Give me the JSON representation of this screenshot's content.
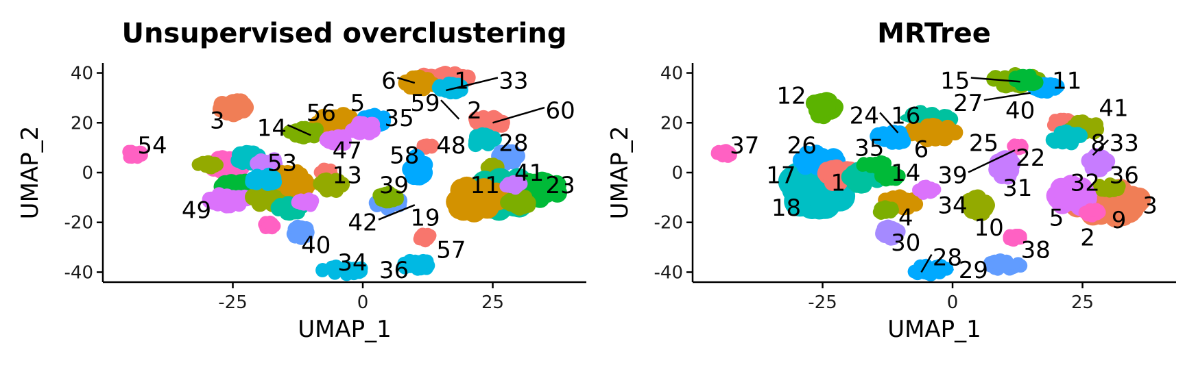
{
  "chart_data": [
    {
      "type": "scatter",
      "title": "Unsupervised overclustering",
      "xlabel": "UMAP_1",
      "ylabel": "UMAP_2",
      "xlim": [
        -50,
        43
      ],
      "ylim": [
        -44,
        44
      ],
      "xticks": [
        -25,
        0,
        25
      ],
      "yticks": [
        -40,
        -20,
        0,
        20,
        40
      ],
      "grid": false,
      "legend": "none",
      "clusters": [
        {
          "x": 15.5,
          "y": 37,
          "rx": 6.5,
          "ry": 3.5,
          "color": "#F8766D"
        },
        {
          "x": 11,
          "y": 36,
          "rx": 4,
          "ry": 3,
          "color": "#D39200"
        },
        {
          "x": 17,
          "y": 34,
          "rx": 3,
          "ry": 2.5,
          "color": "#00B9E3"
        },
        {
          "x": -25,
          "y": 26,
          "rx": 3,
          "ry": 4,
          "color": "#F07E56"
        },
        {
          "x": -5,
          "y": 20,
          "rx": 5,
          "ry": 4,
          "color": "#D39200"
        },
        {
          "x": 2,
          "y": 21,
          "rx": 3,
          "ry": 3,
          "color": "#00A9FF"
        },
        {
          "x": -11,
          "y": 16,
          "rx": 4,
          "ry": 2.5,
          "color": "#7CAE00"
        },
        {
          "x": -5,
          "y": 13,
          "rx": 3,
          "ry": 2.5,
          "color": "#DB72FB"
        },
        {
          "x": 0,
          "y": 18,
          "rx": 3,
          "ry": 3,
          "color": "#DB72FB"
        },
        {
          "x": -44,
          "y": 7.5,
          "rx": 2,
          "ry": 2,
          "color": "#FF61C3"
        },
        {
          "x": 12.5,
          "y": 10.5,
          "rx": 1.5,
          "ry": 1.5,
          "color": "#F8766D"
        },
        {
          "x": 24,
          "y": 20,
          "rx": 4,
          "ry": 3,
          "color": "#F8766D"
        },
        {
          "x": 23,
          "y": 13,
          "rx": 3,
          "ry": 3,
          "color": "#00BFC4"
        },
        {
          "x": 28,
          "y": 6,
          "rx": 2.5,
          "ry": 3.5,
          "color": "#619CFF"
        },
        {
          "x": 25,
          "y": 2,
          "rx": 1.5,
          "ry": 2,
          "color": "#93AA00"
        },
        {
          "x": 10.5,
          "y": 2,
          "rx": 2,
          "ry": 5,
          "color": "#00A9FF"
        },
        {
          "x": 27,
          "y": -9,
          "rx": 8,
          "ry": 8,
          "color": "#00C19F"
        },
        {
          "x": 34,
          "y": -7,
          "rx": 5,
          "ry": 5,
          "color": "#00BA38"
        },
        {
          "x": 22,
          "y": -11,
          "rx": 5,
          "ry": 7,
          "color": "#D39200"
        },
        {
          "x": 30,
          "y": -12,
          "rx": 3,
          "ry": 3,
          "color": "#7CAE00"
        },
        {
          "x": 29,
          "y": -5,
          "rx": 2,
          "ry": 2,
          "color": "#C77CFF"
        },
        {
          "x": 5,
          "y": -12,
          "rx": 3.5,
          "ry": 3,
          "color": "#619CFF"
        },
        {
          "x": 5,
          "y": -10,
          "rx": 2.5,
          "ry": 2.5,
          "color": "#7CAE00"
        },
        {
          "x": 12,
          "y": -26,
          "rx": 1.5,
          "ry": 2,
          "color": "#F8766D"
        },
        {
          "x": 10,
          "y": -37,
          "rx": 4,
          "ry": 2.5,
          "color": "#00B9E3"
        },
        {
          "x": -4,
          "y": -39,
          "rx": 5,
          "ry": 2.5,
          "color": "#00B9E3"
        },
        {
          "x": -12,
          "y": -24,
          "rx": 2,
          "ry": 3,
          "color": "#619CFF"
        },
        {
          "x": -18,
          "y": -21,
          "rx": 1.5,
          "ry": 2,
          "color": "#FF61C3"
        },
        {
          "x": -26,
          "y": 3,
          "rx": 4,
          "ry": 4,
          "color": "#FF61C3"
        },
        {
          "x": -22,
          "y": 6,
          "rx": 3,
          "ry": 3,
          "color": "#00BFC4"
        },
        {
          "x": -30,
          "y": 3,
          "rx": 2.5,
          "ry": 2,
          "color": "#93AA00"
        },
        {
          "x": -18,
          "y": 3,
          "rx": 3,
          "ry": 3,
          "color": "#C77CFF"
        },
        {
          "x": -14,
          "y": -1,
          "rx": 3,
          "ry": 2.5,
          "color": "#D39200"
        },
        {
          "x": -7,
          "y": 0,
          "rx": 1.5,
          "ry": 2,
          "color": "#F8766D"
        },
        {
          "x": -24,
          "y": -6,
          "rx": 4,
          "ry": 4,
          "color": "#00BA38"
        },
        {
          "x": -26,
          "y": -11,
          "rx": 5,
          "ry": 3,
          "color": "#DB72FB"
        },
        {
          "x": -17,
          "y": -10,
          "rx": 6,
          "ry": 4,
          "color": "#93AA00"
        },
        {
          "x": -13,
          "y": -5,
          "rx": 4,
          "ry": 3,
          "color": "#D39200"
        },
        {
          "x": -6,
          "y": -5,
          "rx": 3,
          "ry": 3,
          "color": "#93AA00"
        },
        {
          "x": -19,
          "y": -3,
          "rx": 3,
          "ry": 3,
          "color": "#00B9E3"
        },
        {
          "x": -14,
          "y": -14,
          "rx": 3,
          "ry": 3,
          "color": "#00C19F"
        },
        {
          "x": -11,
          "y": -12,
          "rx": 2,
          "ry": 2,
          "color": "#DB72FB"
        }
      ],
      "labels": [
        {
          "text": "6",
          "x": 5,
          "y": 37,
          "lx": 10,
          "ly": 36
        },
        {
          "text": "1",
          "x": 19,
          "y": 37
        },
        {
          "text": "33",
          "x": 29,
          "y": 37,
          "lx": 16,
          "ly": 33
        },
        {
          "text": "59",
          "x": 12,
          "y": 28,
          "lx": 18.5,
          "ly": 21.5
        },
        {
          "text": "2",
          "x": 21.5,
          "y": 25
        },
        {
          "text": "60",
          "x": 38,
          "y": 25,
          "lx": 25,
          "ly": 20
        },
        {
          "text": "3",
          "x": -28,
          "y": 21
        },
        {
          "text": "56",
          "x": -8,
          "y": 24
        },
        {
          "text": "5",
          "x": -1,
          "y": 28
        },
        {
          "text": "35",
          "x": 7,
          "y": 22
        },
        {
          "text": "14",
          "x": -17.5,
          "y": 18,
          "lx": -10,
          "ly": 15
        },
        {
          "text": "47",
          "x": -3,
          "y": 9
        },
        {
          "text": "58",
          "x": 8,
          "y": 7
        },
        {
          "text": "48",
          "x": 17,
          "y": 11
        },
        {
          "text": "28",
          "x": 29,
          "y": 12
        },
        {
          "text": "54",
          "x": -40.5,
          "y": 11
        },
        {
          "text": "53",
          "x": -15.5,
          "y": 4
        },
        {
          "text": "13",
          "x": -3,
          "y": -1
        },
        {
          "text": "41",
          "x": 32,
          "y": 0
        },
        {
          "text": "23",
          "x": 38,
          "y": -5
        },
        {
          "text": "11",
          "x": 23.5,
          "y": -5
        },
        {
          "text": "39",
          "x": 6,
          "y": -5
        },
        {
          "text": "49",
          "x": -32,
          "y": -15
        },
        {
          "text": "42",
          "x": 0,
          "y": -20,
          "lx": 10,
          "ly": -13
        },
        {
          "text": "19",
          "x": 12,
          "y": -18
        },
        {
          "text": "57",
          "x": 17,
          "y": -31
        },
        {
          "text": "40",
          "x": -9,
          "y": -29
        },
        {
          "text": "34",
          "x": -2,
          "y": -36
        },
        {
          "text": "36",
          "x": 6,
          "y": -39
        }
      ]
    },
    {
      "type": "scatter",
      "title": "MRTree",
      "xlabel": "UMAP_1",
      "ylabel": "UMAP_2",
      "xlim": [
        -50,
        43
      ],
      "ylim": [
        -44,
        44
      ],
      "xticks": [
        -25,
        0,
        25
      ],
      "yticks": [
        -40,
        -20,
        0,
        20,
        40
      ],
      "grid": false,
      "legend": "none",
      "clusters": [
        {
          "x": 12,
          "y": 37,
          "rx": 6,
          "ry": 3,
          "color": "#7CAE00"
        },
        {
          "x": 18,
          "y": 34,
          "rx": 4,
          "ry": 2.5,
          "color": "#00A9FF"
        },
        {
          "x": 14,
          "y": 37,
          "rx": 3,
          "ry": 2.5,
          "color": "#00BA38"
        },
        {
          "x": -25,
          "y": 26,
          "rx": 3,
          "ry": 4,
          "color": "#5BB300"
        },
        {
          "x": -44,
          "y": 7.5,
          "rx": 2,
          "ry": 2,
          "color": "#FF61C3"
        },
        {
          "x": -5,
          "y": 22,
          "rx": 6,
          "ry": 3,
          "color": "#00C19F"
        },
        {
          "x": -4,
          "y": 16,
          "rx": 7,
          "ry": 3.5,
          "color": "#D39200"
        },
        {
          "x": -12,
          "y": 14,
          "rx": 4,
          "ry": 3,
          "color": "#00A9FF"
        },
        {
          "x": 12.5,
          "y": 10.5,
          "rx": 1.5,
          "ry": 1.5,
          "color": "#FF61C3"
        },
        {
          "x": 21,
          "y": 20,
          "rx": 3,
          "ry": 2,
          "color": "#F8766D"
        },
        {
          "x": 25,
          "y": 18,
          "rx": 4,
          "ry": 3,
          "color": "#93AA00"
        },
        {
          "x": 22,
          "y": 14,
          "rx": 4,
          "ry": 3,
          "color": "#00BFC4"
        },
        {
          "x": 28,
          "y": 4,
          "rx": 2.5,
          "ry": 3.5,
          "color": "#C77CFF"
        },
        {
          "x": 10,
          "y": 2,
          "rx": 2,
          "ry": 5,
          "color": "#C77CFF"
        },
        {
          "x": 30,
          "y": -12,
          "rx": 8,
          "ry": 7,
          "color": "#F07E56"
        },
        {
          "x": 23,
          "y": -10,
          "rx": 4,
          "ry": 6,
          "color": "#DB72FB"
        },
        {
          "x": 30,
          "y": -6,
          "rx": 3,
          "ry": 2,
          "color": "#93AA00"
        },
        {
          "x": 27,
          "y": -16,
          "rx": 2,
          "ry": 2,
          "color": "#FF61C3"
        },
        {
          "x": 5,
          "y": -13,
          "rx": 3.5,
          "ry": 4,
          "color": "#93AA00"
        },
        {
          "x": 12,
          "y": -26,
          "rx": 1.5,
          "ry": 2,
          "color": "#FF61C3"
        },
        {
          "x": 10,
          "y": -37,
          "rx": 4,
          "ry": 2.5,
          "color": "#619CFF"
        },
        {
          "x": -4,
          "y": -39,
          "rx": 5,
          "ry": 2.5,
          "color": "#00A9FF"
        },
        {
          "x": -12,
          "y": -24,
          "rx": 2,
          "ry": 3,
          "color": "#A58AFF"
        },
        {
          "x": -26,
          "y": -5,
          "rx": 8,
          "ry": 10,
          "color": "#00BFC4"
        },
        {
          "x": -26,
          "y": 5,
          "rx": 5,
          "ry": 4,
          "color": "#00A9FF"
        },
        {
          "x": -22,
          "y": -1,
          "rx": 4,
          "ry": 4,
          "color": "#F8766D"
        },
        {
          "x": -17,
          "y": -2,
          "rx": 4,
          "ry": 4,
          "color": "#00C19F"
        },
        {
          "x": -15,
          "y": 3,
          "rx": 3,
          "ry": 2,
          "color": "#00BA38"
        },
        {
          "x": -12,
          "y": -1,
          "rx": 2.5,
          "ry": 2.5,
          "color": "#00BA38"
        },
        {
          "x": -10,
          "y": -12,
          "rx": 4,
          "ry": 3,
          "color": "#D39200"
        },
        {
          "x": -5,
          "y": -7,
          "rx": 2,
          "ry": 2,
          "color": "#DB72FB"
        },
        {
          "x": -13,
          "y": -15,
          "rx": 2,
          "ry": 2,
          "color": "#7CAE00"
        }
      ],
      "labels": [
        {
          "text": "15",
          "x": 0.5,
          "y": 37,
          "lx": 13,
          "ly": 36.5
        },
        {
          "text": "11",
          "x": 22,
          "y": 37
        },
        {
          "text": "27",
          "x": 3,
          "y": 28,
          "lx": 15,
          "ly": 32
        },
        {
          "text": "40",
          "x": 13,
          "y": 25
        },
        {
          "text": "41",
          "x": 31,
          "y": 26
        },
        {
          "text": "12",
          "x": -31,
          "y": 31
        },
        {
          "text": "24",
          "x": -17,
          "y": 23,
          "lx": -10.5,
          "ly": 16
        },
        {
          "text": "16",
          "x": -9,
          "y": 23
        },
        {
          "text": "37",
          "x": -40,
          "y": 11
        },
        {
          "text": "26",
          "x": -29,
          "y": 11
        },
        {
          "text": "35",
          "x": -16,
          "y": 10
        },
        {
          "text": "6",
          "x": -6,
          "y": 9.5
        },
        {
          "text": "25",
          "x": 6,
          "y": 12
        },
        {
          "text": "22",
          "x": 15,
          "y": 6
        },
        {
          "text": "39",
          "x": 0,
          "y": -1,
          "lx": 12,
          "ly": 9
        },
        {
          "text": "14",
          "x": -9,
          "y": 0
        },
        {
          "text": "8",
          "x": 28,
          "y": 12
        },
        {
          "text": "33",
          "x": 33,
          "y": 12,
          "lx": 27,
          "ly": 7
        },
        {
          "text": "17",
          "x": -33,
          "y": -1
        },
        {
          "text": "1",
          "x": -22,
          "y": -4
        },
        {
          "text": "36",
          "x": 33,
          "y": -1
        },
        {
          "text": "32",
          "x": 25.5,
          "y": -4
        },
        {
          "text": "31",
          "x": 12.5,
          "y": -6
        },
        {
          "text": "18",
          "x": -32,
          "y": -14
        },
        {
          "text": "34",
          "x": 0,
          "y": -13
        },
        {
          "text": "4",
          "x": -9,
          "y": -18
        },
        {
          "text": "10",
          "x": 7,
          "y": -22
        },
        {
          "text": "5",
          "x": 20,
          "y": -18
        },
        {
          "text": "9",
          "x": 32,
          "y": -19
        },
        {
          "text": "3",
          "x": 38,
          "y": -13
        },
        {
          "text": "2",
          "x": 26,
          "y": -26
        },
        {
          "text": "38",
          "x": 16,
          "y": -31
        },
        {
          "text": "30",
          "x": -9,
          "y": -28
        },
        {
          "text": "28",
          "x": -1,
          "y": -34,
          "lx": -6,
          "ly": -40
        },
        {
          "text": "29",
          "x": 4,
          "y": -39
        }
      ]
    }
  ]
}
